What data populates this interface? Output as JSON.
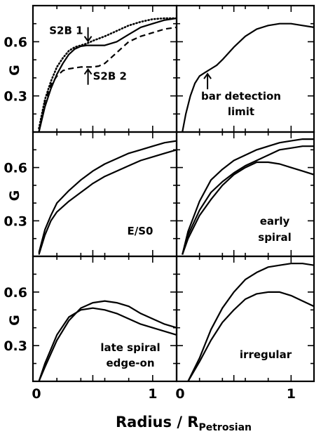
{
  "chart_data": {
    "type": "line",
    "layout": "3x2 grid of panels sharing axes",
    "xlabel": "Radius / R",
    "xlabel_subscript": "Petrosian",
    "ylabel": "G",
    "xlim": [
      0,
      1.2
    ],
    "ylim": [
      0.1,
      0.8
    ],
    "x_tick_labels": [
      {
        "v": 0,
        "t": "0"
      },
      {
        "v": 1,
        "t": "1"
      }
    ],
    "y_tick_labels": [
      {
        "v": 0.3,
        "t": "0.3"
      },
      {
        "v": 0.6,
        "t": "0.6"
      }
    ],
    "panels": [
      {
        "label_lines": [],
        "series": [
          {
            "style": "dotted",
            "x": [
              0.05,
              0.1,
              0.15,
              0.2,
              0.25,
              0.3,
              0.35,
              0.4,
              0.45,
              0.5,
              0.6,
              0.7,
              0.8,
              0.9,
              1.0,
              1.1,
              1.2
            ],
            "y": [
              0.12,
              0.28,
              0.38,
              0.46,
              0.51,
              0.55,
              0.57,
              0.58,
              0.59,
              0.605,
              0.63,
              0.66,
              0.69,
              0.71,
              0.725,
              0.73,
              0.73
            ]
          },
          {
            "style": "solid",
            "x": [
              0.05,
              0.1,
              0.15,
              0.2,
              0.25,
              0.3,
              0.35,
              0.4,
              0.45,
              0.5,
              0.6,
              0.7,
              0.8,
              0.9,
              1.0,
              1.1,
              1.2
            ],
            "y": [
              0.1,
              0.24,
              0.34,
              0.42,
              0.48,
              0.53,
              0.56,
              0.575,
              0.58,
              0.58,
              0.58,
              0.6,
              0.64,
              0.68,
              0.7,
              0.72,
              0.73
            ]
          },
          {
            "style": "dashed",
            "x": [
              0.05,
              0.1,
              0.15,
              0.2,
              0.25,
              0.3,
              0.35,
              0.4,
              0.45,
              0.5,
              0.55,
              0.6,
              0.7,
              0.8,
              0.9,
              1.0,
              1.1,
              1.2
            ],
            "y": [
              0.1,
              0.27,
              0.36,
              0.41,
              0.44,
              0.45,
              0.455,
              0.46,
              0.46,
              0.46,
              0.465,
              0.48,
              0.54,
              0.6,
              0.63,
              0.65,
              0.67,
              0.68
            ]
          }
        ],
        "annotations": [
          {
            "text": "S2B 1",
            "arrow": "down",
            "x": 0.46,
            "y": 0.595
          },
          {
            "text": "S2B 2",
            "arrow": "up",
            "x": 0.46,
            "y": 0.455
          }
        ]
      },
      {
        "label_lines": [
          "bar detection",
          "limit"
        ],
        "series": [
          {
            "style": "solid",
            "x": [
              0.05,
              0.08,
              0.12,
              0.16,
              0.2,
              0.25,
              0.3,
              0.35,
              0.4,
              0.5,
              0.6,
              0.7,
              0.8,
              0.9,
              1.0,
              1.1,
              1.2
            ],
            "y": [
              0.1,
              0.2,
              0.3,
              0.37,
              0.41,
              0.43,
              0.45,
              0.47,
              0.5,
              0.57,
              0.63,
              0.67,
              0.69,
              0.7,
              0.7,
              0.69,
              0.68
            ]
          }
        ],
        "annotations": [
          {
            "text": "",
            "arrow": "up",
            "x": 0.27,
            "y": 0.43
          }
        ]
      },
      {
        "label_lines": [
          "E/S0"
        ],
        "series": [
          {
            "style": "solid",
            "x": [
              0.05,
              0.1,
              0.15,
              0.2,
              0.3,
              0.4,
              0.5,
              0.6,
              0.7,
              0.8,
              0.9,
              1.0,
              1.1,
              1.2
            ],
            "y": [
              0.12,
              0.25,
              0.33,
              0.4,
              0.47,
              0.53,
              0.58,
              0.62,
              0.65,
              0.68,
              0.7,
              0.72,
              0.74,
              0.75
            ]
          },
          {
            "style": "solid",
            "x": [
              0.05,
              0.1,
              0.15,
              0.2,
              0.3,
              0.4,
              0.5,
              0.6,
              0.7,
              0.8,
              0.9,
              1.0,
              1.1,
              1.2
            ],
            "y": [
              0.11,
              0.22,
              0.3,
              0.35,
              0.41,
              0.46,
              0.51,
              0.55,
              0.58,
              0.61,
              0.64,
              0.66,
              0.68,
              0.7
            ]
          }
        ],
        "annotations": []
      },
      {
        "label_lines": [
          "early",
          "spiral"
        ],
        "series": [
          {
            "style": "solid",
            "x": [
              0.05,
              0.1,
              0.2,
              0.3,
              0.4,
              0.5,
              0.6,
              0.7,
              0.8,
              0.9,
              1.0,
              1.1,
              1.2
            ],
            "y": [
              0.11,
              0.24,
              0.41,
              0.53,
              0.59,
              0.64,
              0.67,
              0.7,
              0.72,
              0.74,
              0.75,
              0.76,
              0.76
            ]
          },
          {
            "style": "solid",
            "x": [
              0.05,
              0.1,
              0.2,
              0.3,
              0.4,
              0.5,
              0.6,
              0.7,
              0.8,
              0.9,
              1.0,
              1.1,
              1.2
            ],
            "y": [
              0.11,
              0.22,
              0.36,
              0.46,
              0.52,
              0.57,
              0.61,
              0.64,
              0.67,
              0.7,
              0.71,
              0.72,
              0.72
            ]
          },
          {
            "style": "solid",
            "x": [
              0.05,
              0.1,
              0.2,
              0.3,
              0.4,
              0.5,
              0.6,
              0.7,
              0.8,
              0.9,
              1.0,
              1.1,
              1.2
            ],
            "y": [
              0.11,
              0.2,
              0.33,
              0.42,
              0.5,
              0.56,
              0.6,
              0.63,
              0.63,
              0.62,
              0.6,
              0.58,
              0.56
            ]
          }
        ],
        "annotations": []
      },
      {
        "label_lines": [
          "late spiral",
          "edge-on"
        ],
        "series": [
          {
            "style": "solid",
            "x": [
              0.05,
              0.1,
              0.2,
              0.3,
              0.4,
              0.5,
              0.6,
              0.7,
              0.8,
              0.9,
              1.0,
              1.1,
              1.2
            ],
            "y": [
              0.1,
              0.18,
              0.33,
              0.44,
              0.51,
              0.54,
              0.55,
              0.54,
              0.52,
              0.48,
              0.45,
              0.42,
              0.4
            ]
          },
          {
            "style": "solid",
            "x": [
              0.05,
              0.1,
              0.2,
              0.3,
              0.4,
              0.5,
              0.6,
              0.7,
              0.8,
              0.9,
              1.0,
              1.1,
              1.2
            ],
            "y": [
              0.1,
              0.2,
              0.36,
              0.46,
              0.5,
              0.51,
              0.5,
              0.48,
              0.45,
              0.42,
              0.4,
              0.38,
              0.36
            ]
          }
        ],
        "annotations": []
      },
      {
        "label_lines": [
          "irregular"
        ],
        "series": [
          {
            "style": "solid",
            "x": [
              0.1,
              0.2,
              0.3,
              0.4,
              0.5,
              0.6,
              0.7,
              0.8,
              0.9,
              1.0,
              1.1,
              1.2
            ],
            "y": [
              0.1,
              0.23,
              0.39,
              0.51,
              0.6,
              0.67,
              0.71,
              0.74,
              0.75,
              0.76,
              0.76,
              0.75
            ]
          },
          {
            "style": "solid",
            "x": [
              0.1,
              0.2,
              0.3,
              0.4,
              0.5,
              0.6,
              0.7,
              0.8,
              0.9,
              1.0,
              1.1,
              1.2
            ],
            "y": [
              0.1,
              0.21,
              0.33,
              0.43,
              0.5,
              0.56,
              0.59,
              0.6,
              0.6,
              0.58,
              0.55,
              0.52
            ]
          }
        ],
        "annotations": []
      }
    ]
  }
}
